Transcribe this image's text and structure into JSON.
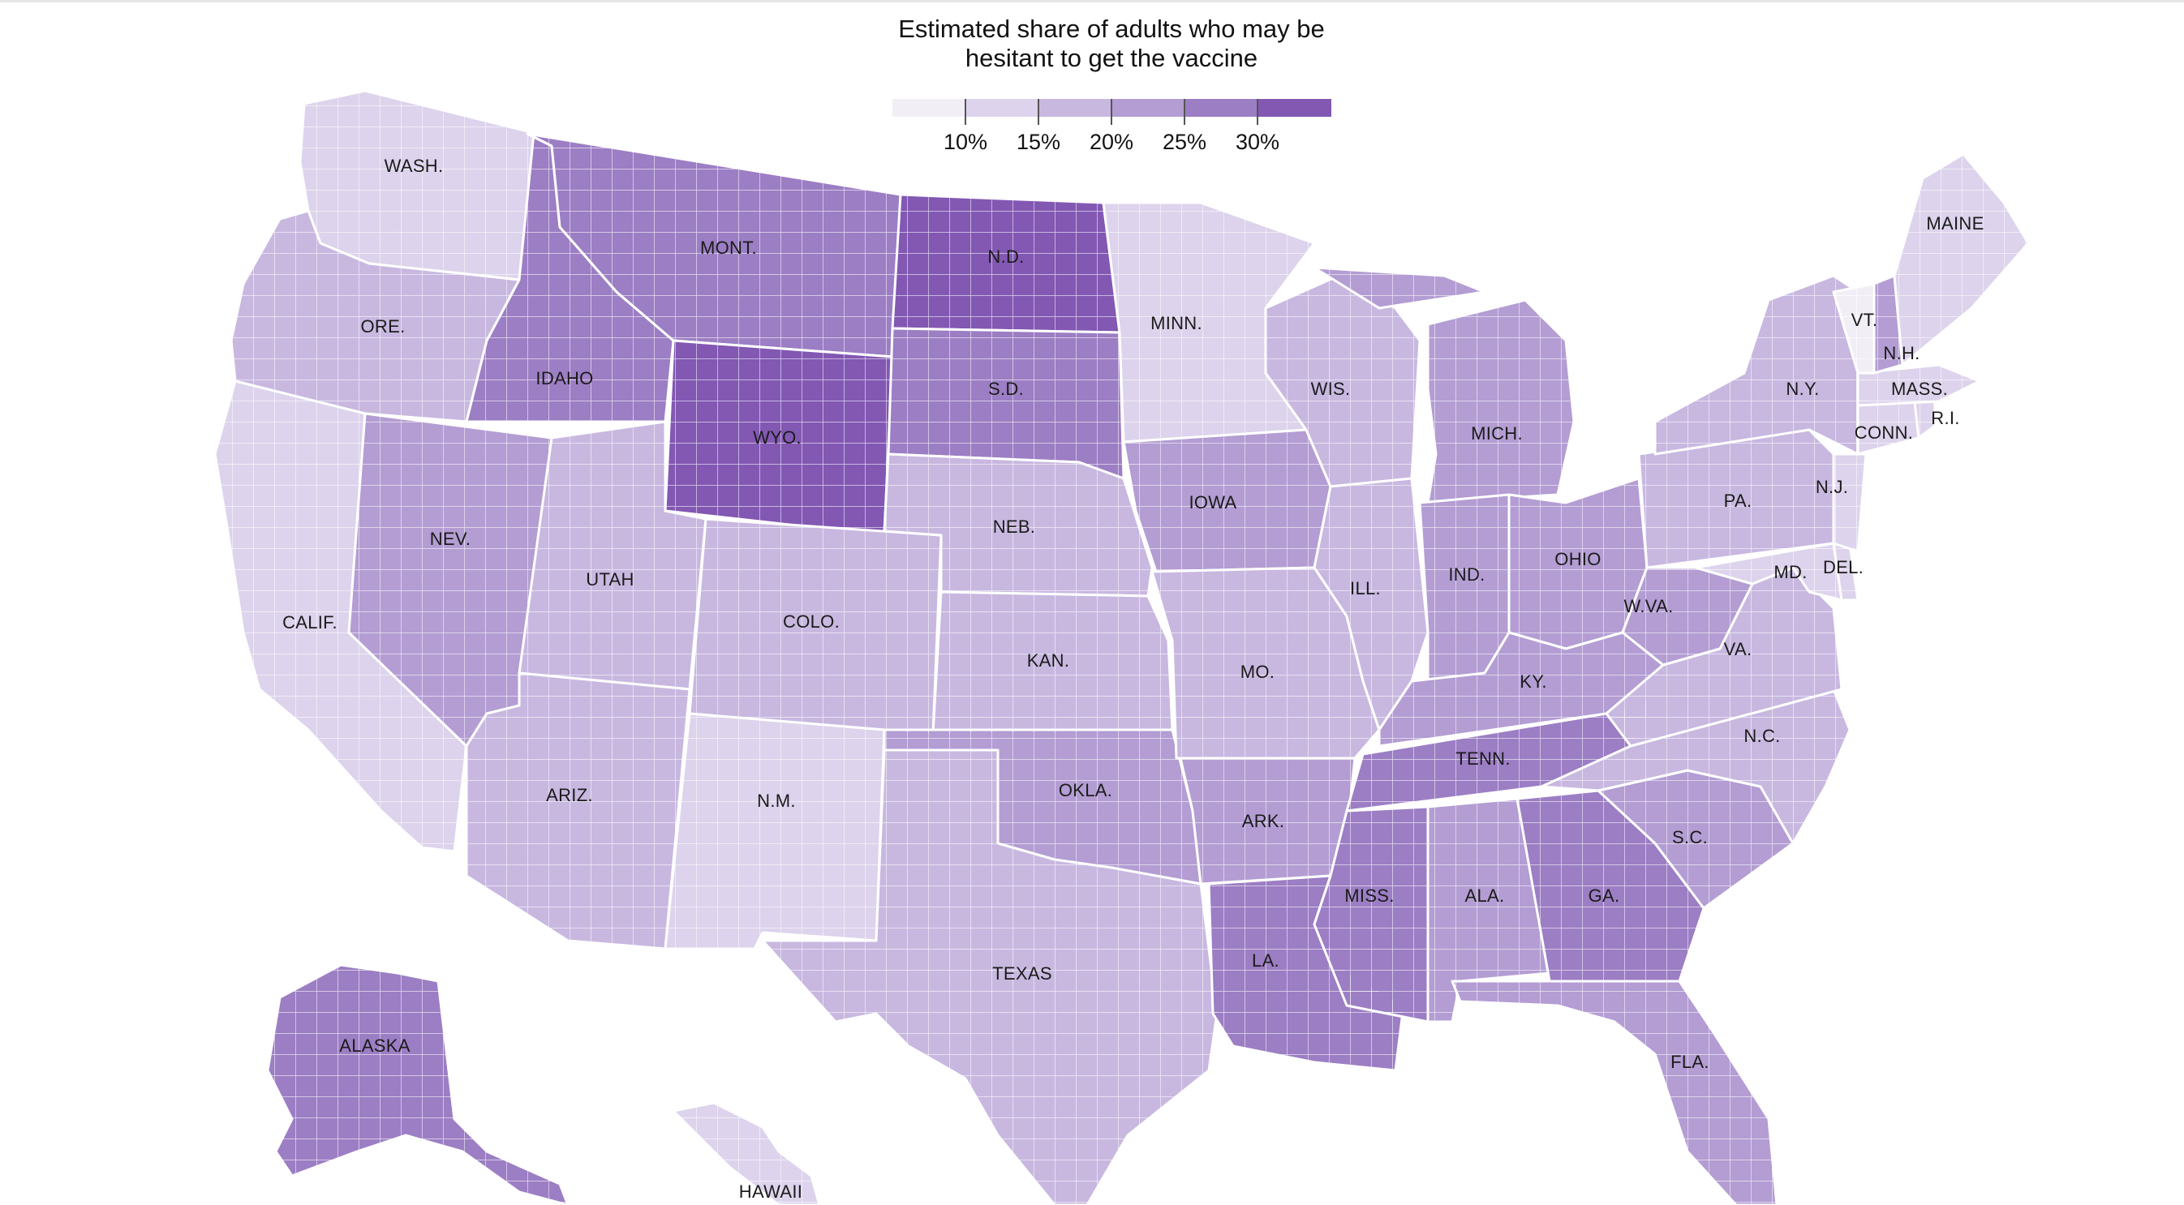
{
  "legend": {
    "title_line1": "Estimated share of adults who may be",
    "title_line2": "hesitant to get the vaccine",
    "ticks": [
      "10%",
      "15%",
      "20%",
      "25%",
      "30%"
    ],
    "colors": [
      "#f1eef6",
      "#ddd3ec",
      "#c8b8e0",
      "#b39dd3",
      "#9c7ec4",
      "#8258b3"
    ]
  },
  "states": [
    {
      "abbr": "WASH.",
      "share": 14,
      "bucket": 1
    },
    {
      "abbr": "ORE.",
      "share": 17,
      "bucket": 2
    },
    {
      "abbr": "CALIF.",
      "share": 14,
      "bucket": 1
    },
    {
      "abbr": "IDAHO",
      "share": 25,
      "bucket": 4
    },
    {
      "abbr": "NEV.",
      "share": 22,
      "bucket": 3
    },
    {
      "abbr": "MONT.",
      "share": 25,
      "bucket": 4
    },
    {
      "abbr": "WYO.",
      "share": 29,
      "bucket": 5
    },
    {
      "abbr": "UTAH",
      "share": 18,
      "bucket": 2
    },
    {
      "abbr": "ARIZ.",
      "share": 19,
      "bucket": 2
    },
    {
      "abbr": "COLO.",
      "share": 17,
      "bucket": 2
    },
    {
      "abbr": "N.M.",
      "share": 15,
      "bucket": 1
    },
    {
      "abbr": "N.D.",
      "share": 28,
      "bucket": 5
    },
    {
      "abbr": "S.D.",
      "share": 25,
      "bucket": 4
    },
    {
      "abbr": "NEB.",
      "share": 18,
      "bucket": 2
    },
    {
      "abbr": "KAN.",
      "share": 19,
      "bucket": 2
    },
    {
      "abbr": "OKLA.",
      "share": 22,
      "bucket": 3
    },
    {
      "abbr": "TEXAS",
      "share": 18,
      "bucket": 2
    },
    {
      "abbr": "MINN.",
      "share": 14,
      "bucket": 1
    },
    {
      "abbr": "IOWA",
      "share": 20,
      "bucket": 3
    },
    {
      "abbr": "MO.",
      "share": 19,
      "bucket": 2
    },
    {
      "abbr": "ARK.",
      "share": 22,
      "bucket": 3
    },
    {
      "abbr": "LA.",
      "share": 26,
      "bucket": 4
    },
    {
      "abbr": "WIS.",
      "share": 17,
      "bucket": 2
    },
    {
      "abbr": "ILL.",
      "share": 17,
      "bucket": 2
    },
    {
      "abbr": "MICH.",
      "share": 22,
      "bucket": 3
    },
    {
      "abbr": "IND.",
      "share": 20,
      "bucket": 3
    },
    {
      "abbr": "OHIO",
      "share": 23,
      "bucket": 3
    },
    {
      "abbr": "KY.",
      "share": 20,
      "bucket": 3
    },
    {
      "abbr": "TENN.",
      "share": 26,
      "bucket": 4
    },
    {
      "abbr": "MISS.",
      "share": 27,
      "bucket": 4
    },
    {
      "abbr": "ALA.",
      "share": 23,
      "bucket": 3
    },
    {
      "abbr": "GA.",
      "share": 26,
      "bucket": 4
    },
    {
      "abbr": "FLA.",
      "share": 22,
      "bucket": 3
    },
    {
      "abbr": "S.C.",
      "share": 20,
      "bucket": 3
    },
    {
      "abbr": "N.C.",
      "share": 19,
      "bucket": 2
    },
    {
      "abbr": "VA.",
      "share": 16,
      "bucket": 2
    },
    {
      "abbr": "W.VA.",
      "share": 24,
      "bucket": 3
    },
    {
      "abbr": "PA.",
      "share": 18,
      "bucket": 2
    },
    {
      "abbr": "N.Y.",
      "share": 18,
      "bucket": 2
    },
    {
      "abbr": "MD.",
      "share": 14,
      "bucket": 1
    },
    {
      "abbr": "DEL.",
      "share": 15,
      "bucket": 1
    },
    {
      "abbr": "N.J.",
      "share": 15,
      "bucket": 1
    },
    {
      "abbr": "CONN.",
      "share": 12,
      "bucket": 1
    },
    {
      "abbr": "R.I.",
      "share": 12,
      "bucket": 1
    },
    {
      "abbr": "MASS.",
      "share": 11,
      "bucket": 1
    },
    {
      "abbr": "VT.",
      "share": 9,
      "bucket": 0
    },
    {
      "abbr": "N.H.",
      "share": 20,
      "bucket": 3
    },
    {
      "abbr": "MAINE",
      "share": 15,
      "bucket": 1
    },
    {
      "abbr": "ALASKA",
      "share": 26,
      "bucket": 4
    },
    {
      "abbr": "HAWAII",
      "share": 14,
      "bucket": 1
    }
  ]
}
